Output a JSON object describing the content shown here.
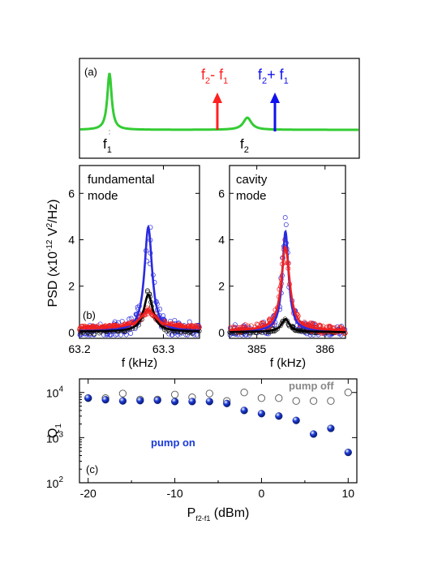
{
  "panel_a": {
    "label": "(a)",
    "f1_label": "f",
    "f1_sub": "1",
    "f2_label": "f",
    "f2_sub": "2",
    "diff_label": [
      "f",
      "2",
      "- f",
      "1"
    ],
    "sum_label": [
      "f",
      "2",
      "+ f",
      "1"
    ],
    "colors": {
      "spectrum": "#33cc33",
      "diff": "#ff2020",
      "sum": "#1010ee"
    }
  },
  "chart_data": [
    {
      "id": "b-left",
      "type": "scatter",
      "label": "(b)",
      "annotation": [
        "fundamental",
        "mode"
      ],
      "ylabel_parts": [
        "PSD (x10",
        "-12",
        " V",
        "2",
        "/Hz)"
      ],
      "xlabel": "f (kHz)",
      "xlim": [
        63.2,
        63.343
      ],
      "ylim": [
        -0.25,
        7.2
      ],
      "xticks": [
        63.2,
        63.3
      ],
      "xtick_labels": [
        "63.2",
        "63.3"
      ],
      "yticks": [
        0,
        2,
        4,
        6
      ],
      "ytick_labels": [
        "0",
        "2",
        "4",
        "6"
      ],
      "center": 63.282,
      "series": [
        {
          "color": "#2a2ae0",
          "peak": 4.5,
          "width": 0.0055,
          "base": 0.05,
          "noise": 0.9,
          "points": 150
        },
        {
          "color": "#222222",
          "peak": 1.6,
          "width": 0.0065,
          "base": 0.04,
          "noise": 0.5,
          "points": 110
        },
        {
          "color": "#ee2020",
          "peak": 0.75,
          "width": 0.011,
          "base": 0.2,
          "noise": 0.35,
          "points": 230
        }
      ]
    },
    {
      "id": "b-right",
      "type": "scatter",
      "annotation": [
        "cavity",
        "mode"
      ],
      "xlabel": "f (kHz)",
      "xlim": [
        384.6,
        386.3
      ],
      "ylim": [
        -0.25,
        7.2
      ],
      "xticks": [
        385,
        386
      ],
      "xtick_labels": [
        "385",
        "386"
      ],
      "yticks": [
        0,
        2,
        4,
        6
      ],
      "ytick_labels": [
        "0",
        "2",
        "4",
        "6"
      ],
      "center": 385.42,
      "series": [
        {
          "color": "#2a2ae0",
          "peak": 4.3,
          "width": 0.055,
          "base": 0.05,
          "noise": 0.7,
          "points": 120
        },
        {
          "color": "#222222",
          "peak": 0.55,
          "width": 0.07,
          "base": 0.03,
          "noise": 0.25,
          "points": 130
        },
        {
          "color": "#ee2020",
          "peak": 3.6,
          "width": 0.075,
          "base": 0.08,
          "noise": 0.5,
          "points": 150
        }
      ]
    },
    {
      "id": "c",
      "type": "scatter",
      "label": "(c)",
      "ylabel": [
        "Q",
        "1"
      ],
      "xlabel": [
        "P",
        "f2-f1",
        " (dBm)"
      ],
      "xlim": [
        -21,
        11
      ],
      "ylim_log": [
        100,
        20000
      ],
      "log_y": true,
      "xticks": [
        -20,
        -10,
        0,
        10
      ],
      "xtick_labels": [
        "-20",
        "-10",
        "0",
        "10"
      ],
      "yticks": [
        100,
        1000,
        10000
      ],
      "ytick_labels": [
        "10",
        "10",
        "10"
      ],
      "ytick_exps": [
        "2",
        "3",
        "4"
      ],
      "series": [
        {
          "name": "pump off",
          "color": "#555555",
          "x": [
            -20,
            -18,
            -16,
            -14,
            -12,
            -10,
            -8,
            -6,
            -4,
            -2,
            0,
            2,
            4,
            6,
            8,
            10
          ],
          "y": [
            7500,
            7500,
            9500,
            7000,
            7000,
            9000,
            7800,
            9500,
            6500,
            10000,
            7500,
            7500,
            6500,
            6500,
            6500,
            10000
          ]
        },
        {
          "name": "pump on",
          "color": "#1a3ad8",
          "x": [
            -20,
            -18,
            -16,
            -14,
            -12,
            -10,
            -8,
            -6,
            -4,
            -2,
            0,
            2,
            4,
            6,
            8,
            10
          ],
          "y": [
            7500,
            6900,
            6500,
            6600,
            6700,
            6300,
            6300,
            6300,
            5700,
            4000,
            3400,
            3000,
            2400,
            1200,
            1600,
            470
          ]
        }
      ]
    }
  ]
}
